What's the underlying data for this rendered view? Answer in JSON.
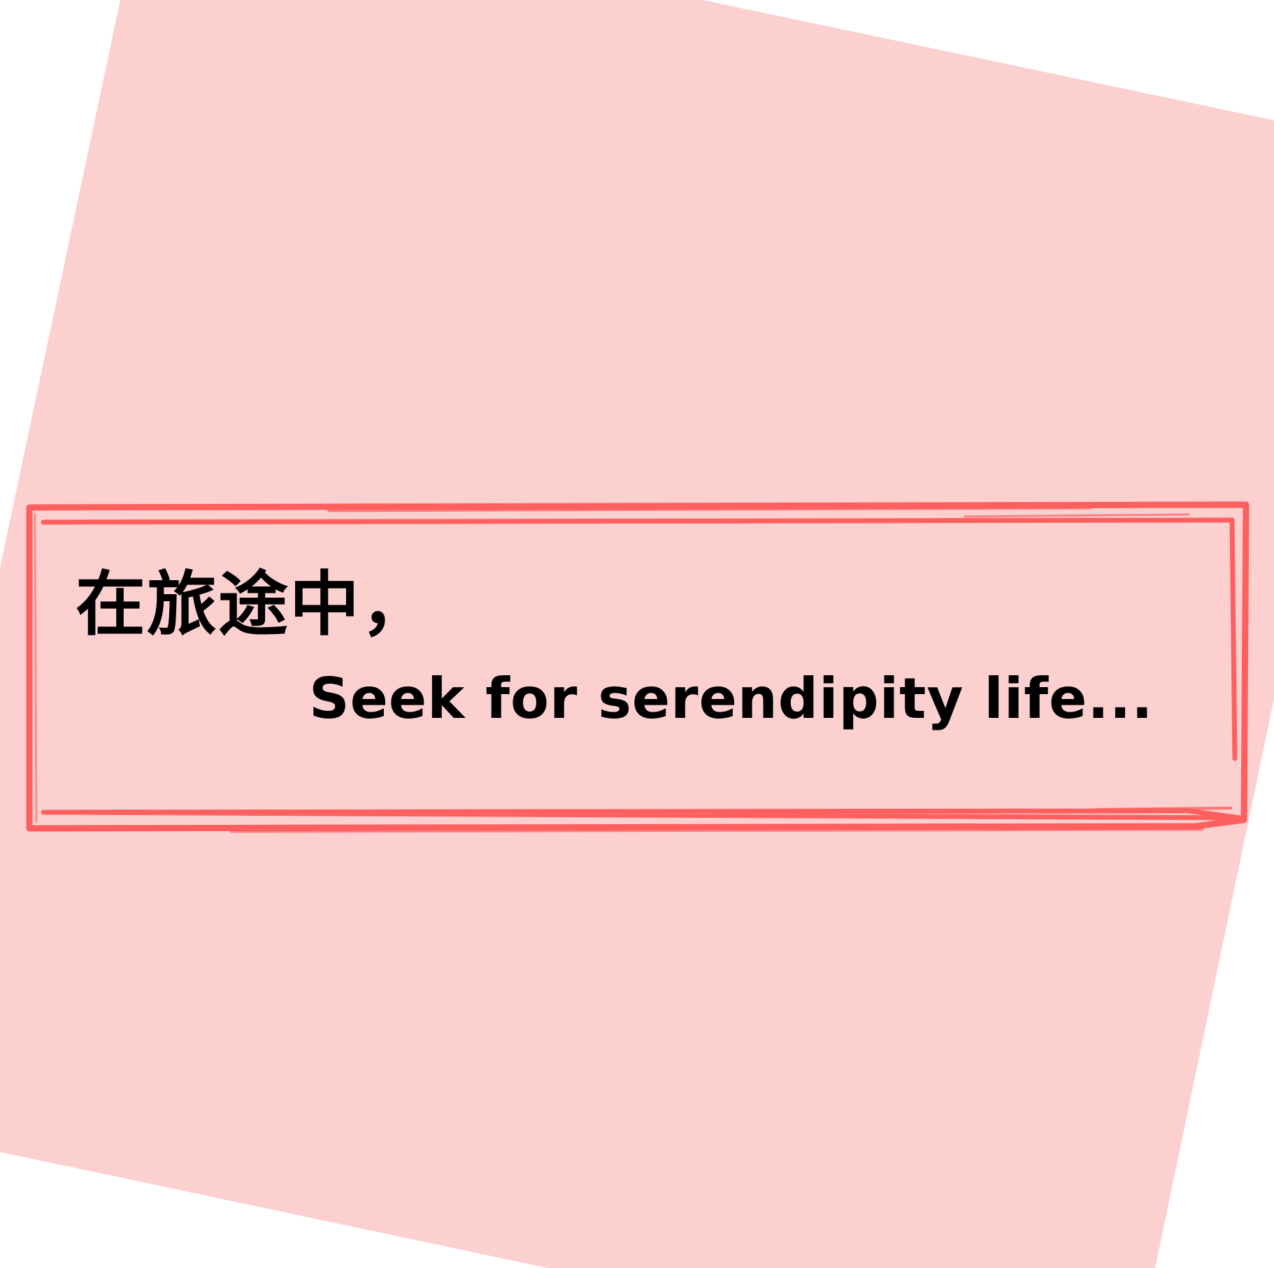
{
  "colors": {
    "page_background": "#ffffff",
    "tilted_card": "#fdd0d0",
    "frame_stroke": "#fe5f5f",
    "text": "#000000"
  },
  "text": {
    "line_chinese": "在旅途中，",
    "line_english": "Seek for serendipity life..."
  }
}
